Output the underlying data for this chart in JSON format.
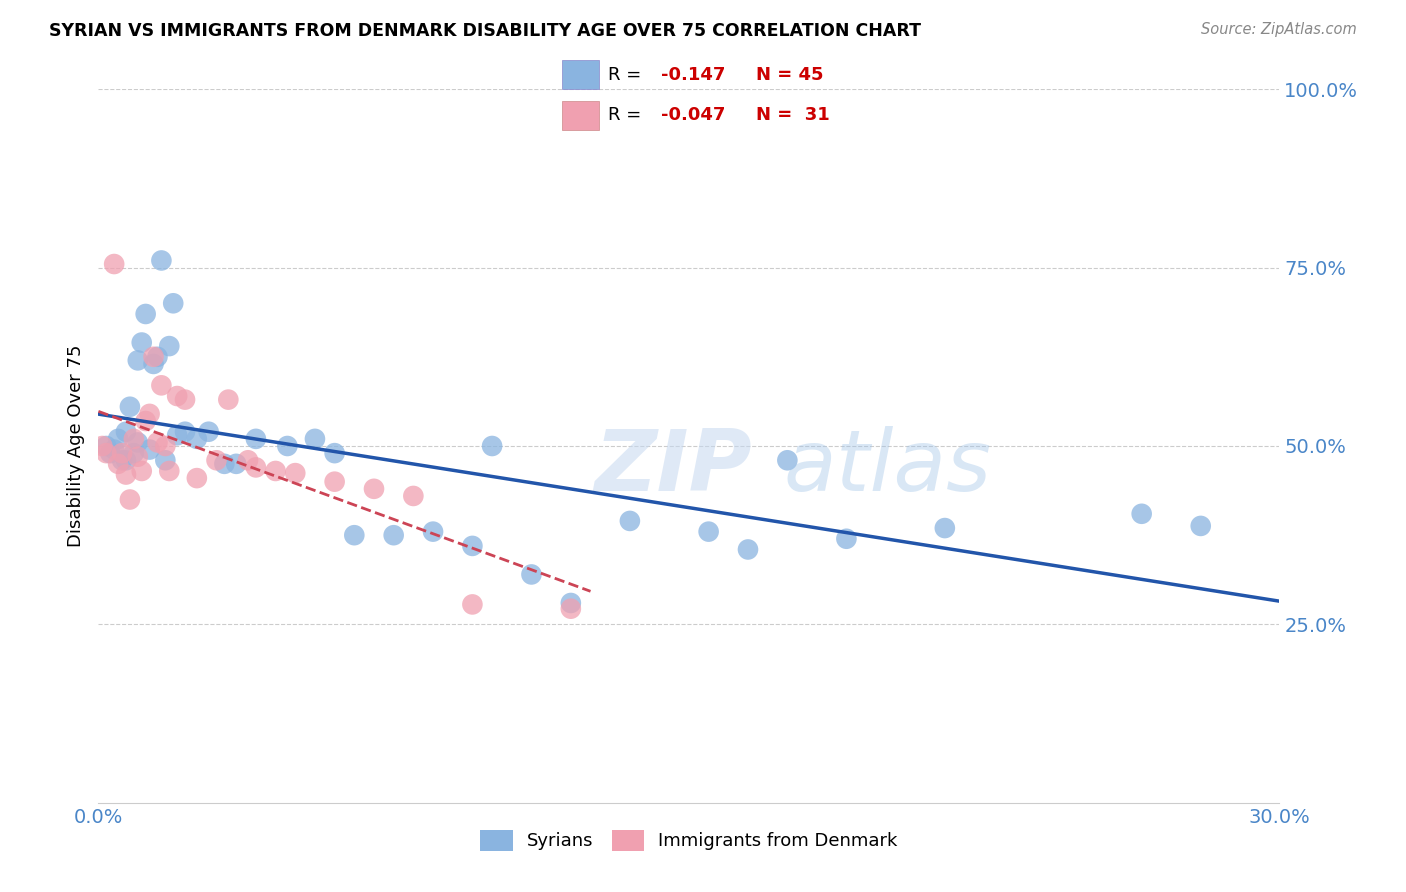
{
  "title": "SYRIAN VS IMMIGRANTS FROM DENMARK DISABILITY AGE OVER 75 CORRELATION CHART",
  "source": "Source: ZipAtlas.com",
  "ylabel": "Disability Age Over 75",
  "xlim": [
    0.0,
    0.3
  ],
  "ylim": [
    0.0,
    1.0
  ],
  "syrians_color": "#8ab4e0",
  "denmark_color": "#f0a0b0",
  "trend_syrians_color": "#2255aa",
  "trend_denmark_color": "#cc4455",
  "background_color": "#ffffff",
  "grid_color": "#cccccc",
  "axis_label_color": "#4a86c8",
  "watermark_zip": "ZIP",
  "watermark_atlas": "atlas",
  "legend_text_color": "#1f4e79",
  "legend_r_color": "#cc0000",
  "syrians_x": [
    0.002,
    0.003,
    0.004,
    0.005,
    0.006,
    0.007,
    0.007,
    0.008,
    0.009,
    0.01,
    0.01,
    0.011,
    0.012,
    0.013,
    0.014,
    0.015,
    0.016,
    0.017,
    0.018,
    0.019,
    0.02,
    0.022,
    0.025,
    0.028,
    0.032,
    0.035,
    0.04,
    0.048,
    0.055,
    0.06,
    0.065,
    0.075,
    0.085,
    0.095,
    0.1,
    0.11,
    0.12,
    0.135,
    0.155,
    0.165,
    0.175,
    0.19,
    0.215,
    0.265,
    0.28
  ],
  "syrians_y": [
    0.5,
    0.49,
    0.495,
    0.51,
    0.48,
    0.48,
    0.52,
    0.555,
    0.49,
    0.62,
    0.505,
    0.645,
    0.685,
    0.495,
    0.615,
    0.625,
    0.76,
    0.48,
    0.64,
    0.7,
    0.515,
    0.52,
    0.51,
    0.52,
    0.475,
    0.475,
    0.51,
    0.5,
    0.51,
    0.49,
    0.375,
    0.375,
    0.38,
    0.36,
    0.5,
    0.32,
    0.28,
    0.395,
    0.38,
    0.355,
    0.48,
    0.37,
    0.385,
    0.405,
    0.388
  ],
  "denmark_x": [
    0.001,
    0.002,
    0.004,
    0.005,
    0.006,
    0.007,
    0.008,
    0.009,
    0.01,
    0.011,
    0.012,
    0.013,
    0.014,
    0.015,
    0.016,
    0.017,
    0.018,
    0.02,
    0.022,
    0.025,
    0.03,
    0.033,
    0.038,
    0.04,
    0.045,
    0.05,
    0.06,
    0.07,
    0.08,
    0.095,
    0.12
  ],
  "denmark_y": [
    0.5,
    0.49,
    0.755,
    0.475,
    0.49,
    0.46,
    0.425,
    0.51,
    0.485,
    0.465,
    0.535,
    0.545,
    0.625,
    0.505,
    0.585,
    0.5,
    0.465,
    0.57,
    0.565,
    0.455,
    0.48,
    0.565,
    0.48,
    0.47,
    0.465,
    0.462,
    0.45,
    0.44,
    0.43,
    0.278,
    0.272
  ]
}
